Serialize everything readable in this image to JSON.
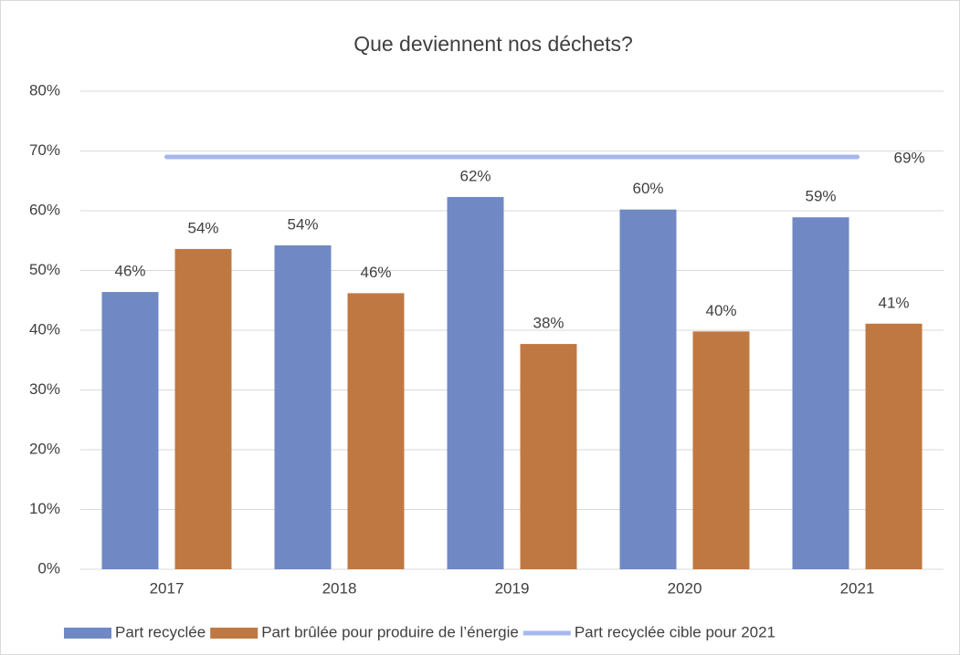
{
  "chart_data": {
    "type": "bar",
    "title": "Que deviennent nos déchets?",
    "categories": [
      "2017",
      "2018",
      "2019",
      "2020",
      "2021"
    ],
    "series": [
      {
        "name": "Part recyclée",
        "color": "#7089c4",
        "values": [
          46.4,
          54.2,
          62.3,
          60.2,
          58.9
        ],
        "value_labels": [
          "46%",
          "54%",
          "62%",
          "60%",
          "59%"
        ]
      },
      {
        "name": "Part brûlée pour produire de l’énergie",
        "color": "#c07843",
        "values": [
          53.6,
          46.2,
          37.7,
          39.8,
          41.1
        ],
        "value_labels": [
          "54%",
          "46%",
          "38%",
          "40%",
          "41%"
        ]
      },
      {
        "name": "Part recyclée cible pour 2021",
        "color": "#a5b8ee",
        "type": "line",
        "values": [
          69,
          69,
          69,
          69,
          69
        ],
        "value_labels": [
          null,
          null,
          null,
          null,
          "69%"
        ]
      }
    ],
    "ylim": [
      0,
      80
    ],
    "yticks": [
      {
        "value": 0,
        "label": "0%"
      },
      {
        "value": 10,
        "label": "10%"
      },
      {
        "value": 20,
        "label": "20%"
      },
      {
        "value": 30,
        "label": "30%"
      },
      {
        "value": 40,
        "label": "40%"
      },
      {
        "value": 50,
        "label": "50%"
      },
      {
        "value": 60,
        "label": "60%"
      },
      {
        "value": 70,
        "label": "70%"
      },
      {
        "value": 80,
        "label": "80%"
      }
    ],
    "grid": true,
    "legend": "bottom"
  }
}
